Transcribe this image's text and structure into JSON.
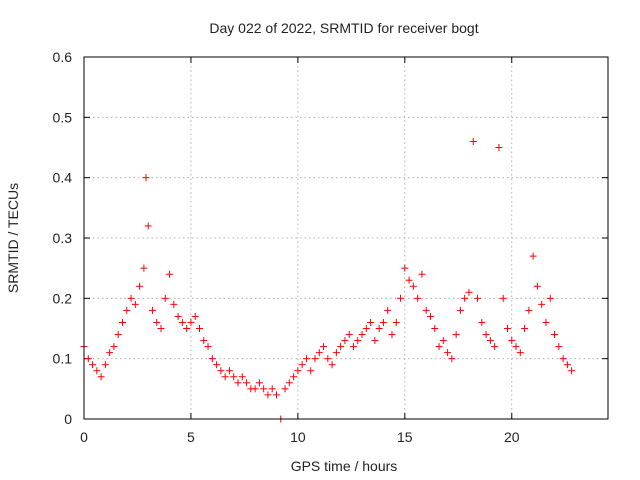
{
  "chart_data": {
    "type": "scatter",
    "title": "Day 022 of 2022, SRMTID for receiver bogt",
    "xlabel": "GPS time / hours",
    "ylabel": "SRMTID / TECUs",
    "xlim": [
      0,
      24.5
    ],
    "ylim": [
      0,
      0.6
    ],
    "xticks": [
      0,
      5,
      10,
      15,
      20
    ],
    "yticks": [
      0,
      0.1,
      0.2,
      0.3,
      0.4,
      0.5,
      0.6
    ],
    "xtick_labels": [
      "0",
      "5",
      "10",
      "15",
      "20"
    ],
    "ytick_labels": [
      "0",
      "0.1",
      "0.2",
      "0.3",
      "0.4",
      "0.5",
      "0.6"
    ],
    "grid": true,
    "marker": "+",
    "color": "#ff0000",
    "series": [
      {
        "name": "SRMTID",
        "x": [
          0.0,
          0.2,
          0.4,
          0.6,
          0.8,
          1.0,
          1.2,
          1.4,
          1.6,
          1.8,
          2.0,
          2.2,
          2.4,
          2.6,
          2.8,
          2.9,
          3.0,
          3.2,
          3.4,
          3.6,
          3.8,
          4.0,
          4.2,
          4.4,
          4.6,
          4.8,
          5.0,
          5.2,
          5.4,
          5.6,
          5.8,
          6.0,
          6.2,
          6.4,
          6.6,
          6.8,
          7.0,
          7.2,
          7.4,
          7.6,
          7.8,
          8.0,
          8.2,
          8.4,
          8.6,
          8.8,
          9.0,
          9.2,
          9.4,
          9.6,
          9.8,
          10.0,
          10.2,
          10.4,
          10.6,
          10.8,
          11.0,
          11.2,
          11.4,
          11.6,
          11.8,
          12.0,
          12.2,
          12.4,
          12.6,
          12.8,
          13.0,
          13.2,
          13.4,
          13.6,
          13.8,
          14.0,
          14.2,
          14.4,
          14.6,
          14.8,
          15.0,
          15.2,
          15.4,
          15.6,
          15.8,
          16.0,
          16.2,
          16.4,
          16.6,
          16.8,
          17.0,
          17.2,
          17.4,
          17.6,
          17.8,
          18.0,
          18.2,
          18.4,
          18.6,
          18.8,
          19.0,
          19.2,
          19.4,
          19.6,
          19.8,
          20.0,
          20.2,
          20.4,
          20.6,
          20.8,
          21.0,
          21.2,
          21.4,
          21.6,
          21.8,
          22.0,
          22.2,
          22.4,
          22.6,
          22.8
        ],
        "y": [
          0.12,
          0.1,
          0.09,
          0.08,
          0.07,
          0.09,
          0.11,
          0.12,
          0.14,
          0.16,
          0.18,
          0.2,
          0.19,
          0.22,
          0.25,
          0.4,
          0.32,
          0.18,
          0.16,
          0.15,
          0.2,
          0.24,
          0.19,
          0.17,
          0.16,
          0.15,
          0.16,
          0.17,
          0.15,
          0.13,
          0.12,
          0.1,
          0.09,
          0.08,
          0.07,
          0.08,
          0.07,
          0.06,
          0.07,
          0.06,
          0.05,
          0.05,
          0.06,
          0.05,
          0.04,
          0.05,
          0.04,
          0.0,
          0.05,
          0.06,
          0.07,
          0.08,
          0.09,
          0.1,
          0.08,
          0.1,
          0.11,
          0.12,
          0.1,
          0.09,
          0.11,
          0.12,
          0.13,
          0.14,
          0.12,
          0.13,
          0.14,
          0.15,
          0.16,
          0.13,
          0.15,
          0.16,
          0.18,
          0.14,
          0.16,
          0.2,
          0.25,
          0.23,
          0.22,
          0.2,
          0.24,
          0.18,
          0.17,
          0.15,
          0.12,
          0.13,
          0.11,
          0.1,
          0.14,
          0.18,
          0.2,
          0.21,
          0.46,
          0.2,
          0.16,
          0.14,
          0.13,
          0.12,
          0.45,
          0.2,
          0.15,
          0.13,
          0.12,
          0.11,
          0.15,
          0.18,
          0.27,
          0.22,
          0.19,
          0.16,
          0.2,
          0.14,
          0.12,
          0.1,
          0.09,
          0.08
        ]
      }
    ]
  }
}
